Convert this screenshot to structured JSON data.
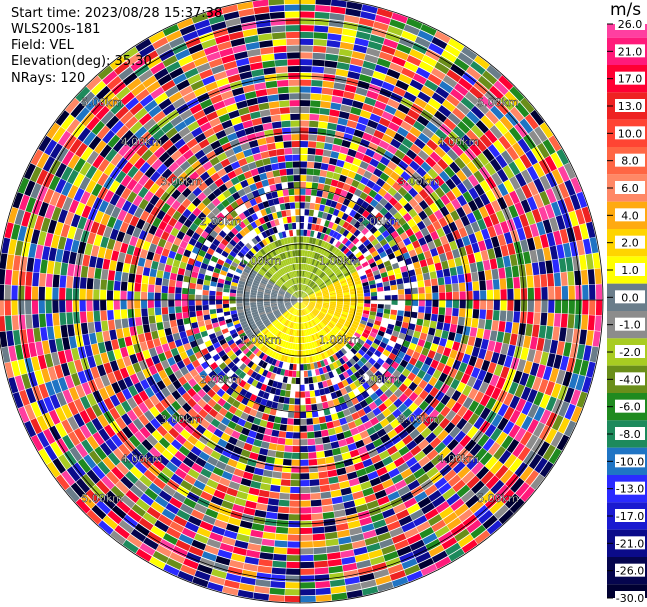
{
  "header": {
    "start_time": "Start time: 2023/08/28 15:37:38",
    "instrument": "WLS200s-181",
    "field": "Field: VEL",
    "elevation": "Elevation(deg): 35.30",
    "nrays": "NRays: 120"
  },
  "chart_data": {
    "type": "heatmap",
    "projection": "polar (PPI scan)",
    "field": "VEL",
    "units": "m/s",
    "n_rays": 120,
    "range_ring_labels": [
      "1.00km",
      "2.00km",
      "3.00km",
      "4.00km",
      "5.00km"
    ],
    "colorbar": {
      "unit": "m/s",
      "tick_labels": [
        "26.0",
        "21.0",
        "17.0",
        "13.0",
        "10.0",
        "8.0",
        "6.0",
        "4.0",
        "2.0",
        "1.0",
        "0.0",
        "-1.0",
        "-2.0",
        "-4.0",
        "-6.0",
        "-8.0",
        "-10.0",
        "-13.0",
        "-17.0",
        "-21.0",
        "-26.0",
        "-30.0"
      ],
      "colors": [
        "#ff3fa0",
        "#ff1a7a",
        "#ff0033",
        "#ee2222",
        "#ff4433",
        "#ff6644",
        "#ff8866",
        "#ffaa11",
        "#ffd400",
        "#ffff00",
        "#6a7d8a",
        "#8c8c8c",
        "#a8cc22",
        "#6a8e1a",
        "#1f8a1f",
        "#1d8a5c",
        "#1f74c4",
        "#2a2aff",
        "#1a1ad0",
        "#0b0b8a",
        "#05054e",
        "#000032"
      ]
    },
    "grid": true,
    "note": "Inner ~1 km mostly near-zero velocities (grey/yellow/green); outer gates noisy across full colour range."
  }
}
